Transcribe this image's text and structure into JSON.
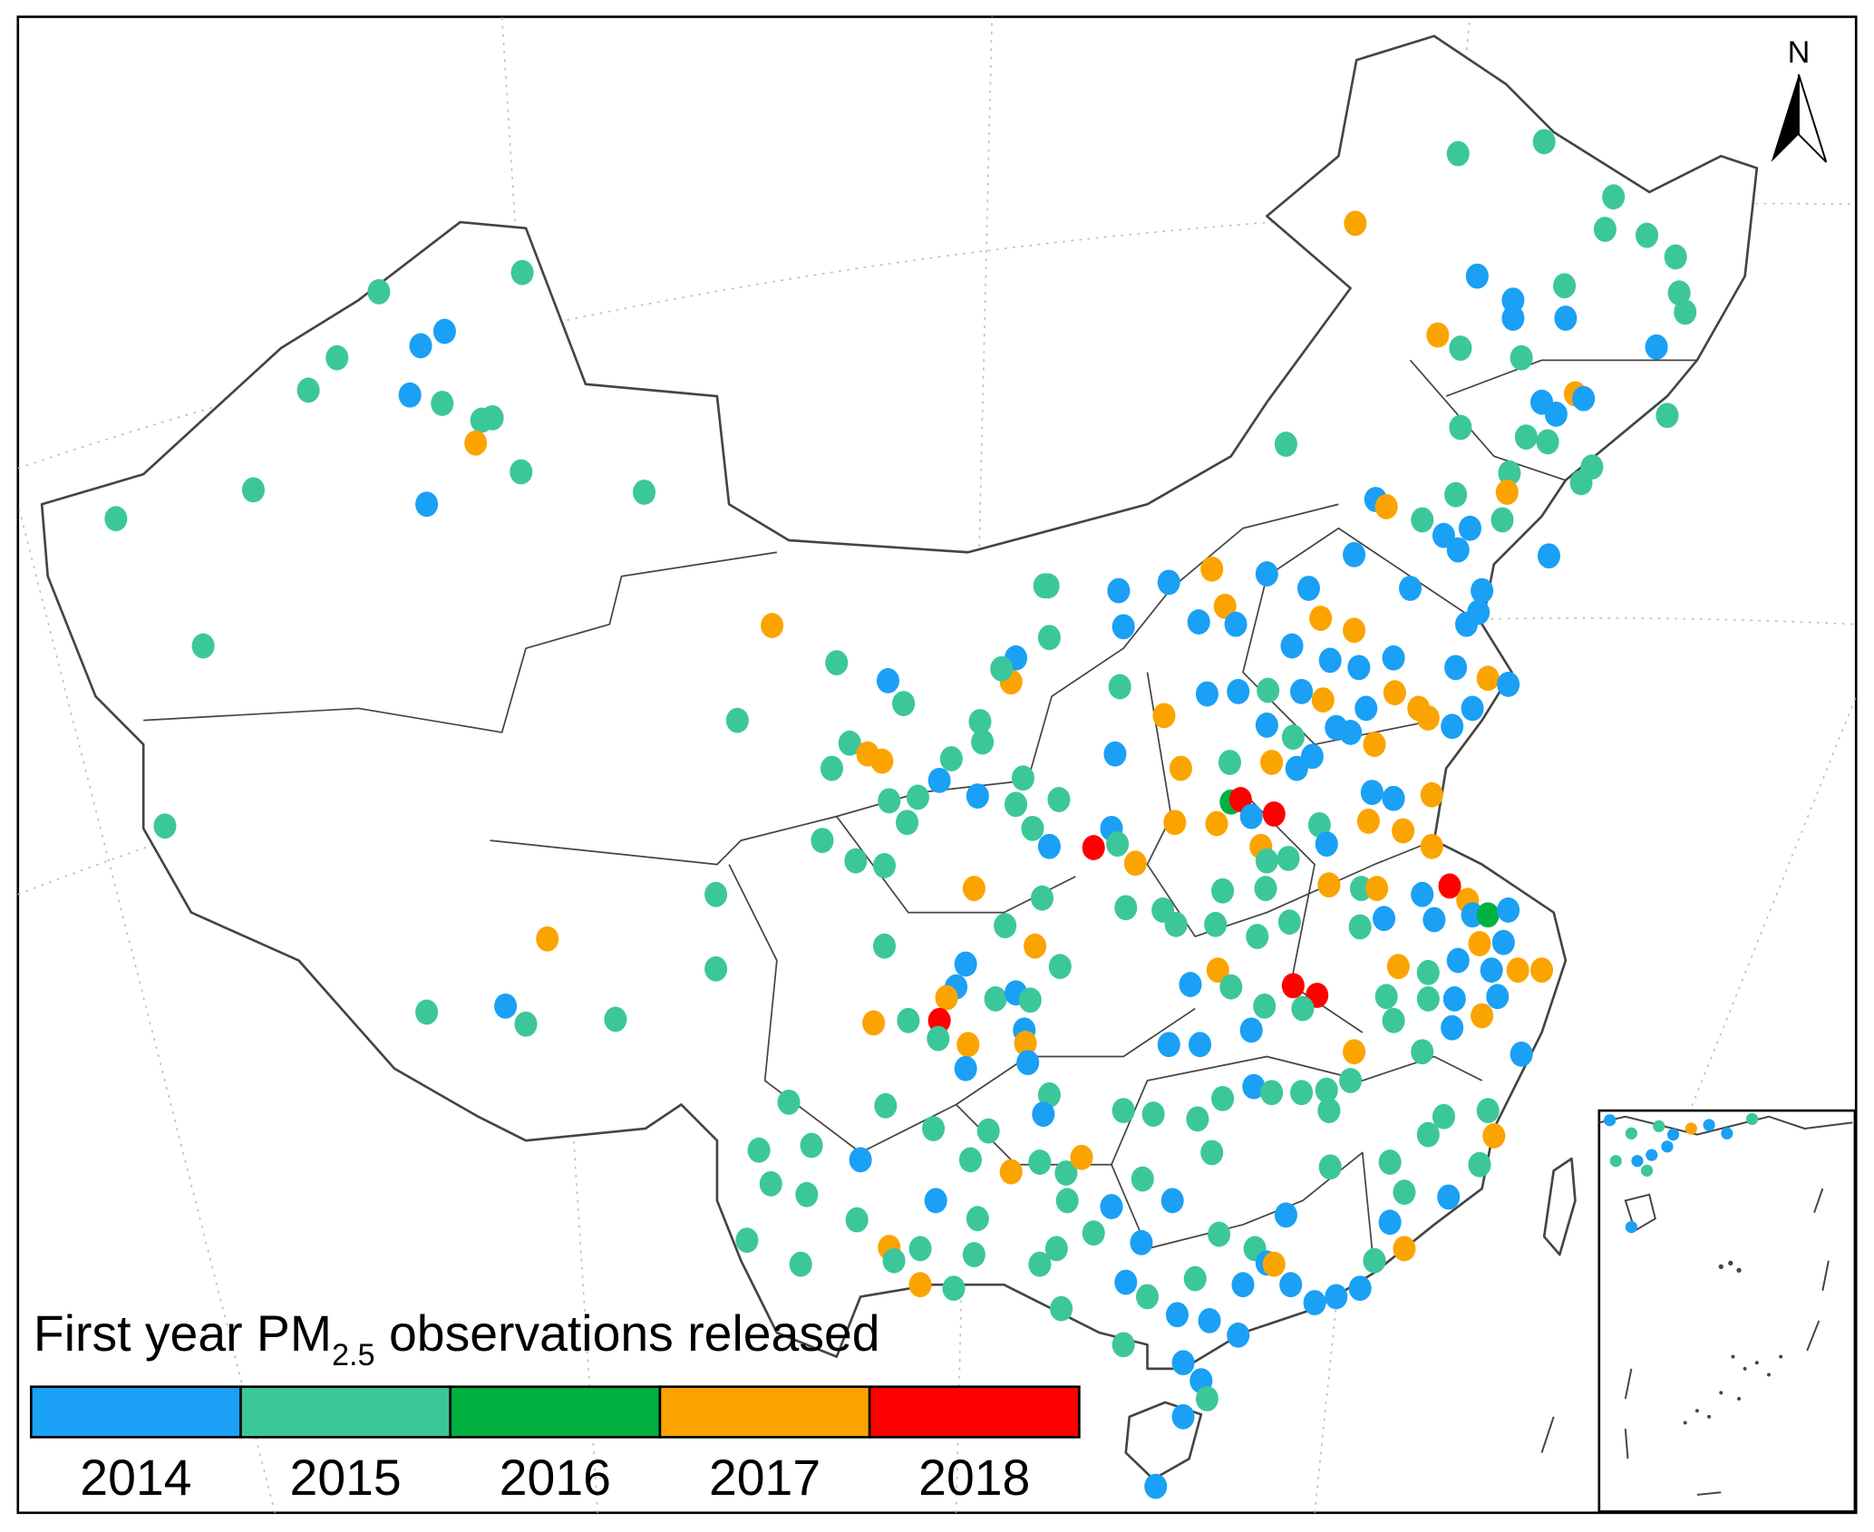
{
  "map": {
    "north_label": "N",
    "legend": {
      "title_prefix": "First year PM",
      "title_subscript": "2.5",
      "title_suffix": " observations released",
      "items": [
        {
          "year": "2014",
          "color": "#1aa0f5"
        },
        {
          "year": "2015",
          "color": "#3cc79a"
        },
        {
          "year": "2016",
          "color": "#00b140"
        },
        {
          "year": "2017",
          "color": "#fba400"
        },
        {
          "year": "2018",
          "color": "#fe0000"
        }
      ]
    },
    "colors": {
      "boundary": "#444444",
      "graticule": "#bbbbbb",
      "frame": "#000000"
    }
  }
}
